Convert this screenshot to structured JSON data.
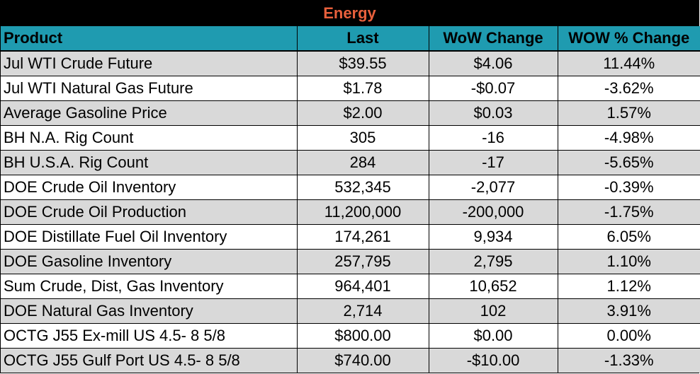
{
  "title": "Energy",
  "colors": {
    "title_text": "#e8603c",
    "title_bg": "#000000",
    "header_bg": "#1f9bb0",
    "row_shade": "#d9d9d9",
    "row_plain": "#ffffff"
  },
  "columns": [
    "Product",
    "Last",
    "WoW Change",
    "WOW % Change"
  ],
  "rows": [
    [
      "Jul WTI Crude Future",
      "$39.55",
      "$4.06",
      "11.44%"
    ],
    [
      "Jul WTI Natural Gas Future",
      "$1.78",
      "-$0.07",
      "-3.62%"
    ],
    [
      "Average Gasoline Price",
      "$2.00",
      "$0.03",
      "1.57%"
    ],
    [
      "BH N.A. Rig Count",
      "305",
      "-16",
      "-4.98%"
    ],
    [
      "BH U.S.A. Rig Count",
      "284",
      "-17",
      "-5.65%"
    ],
    [
      "DOE Crude Oil Inventory",
      "532,345",
      "-2,077",
      "-0.39%"
    ],
    [
      "DOE Crude Oil Production",
      "11,200,000",
      "-200,000",
      "-1.75%"
    ],
    [
      "DOE Distillate Fuel Oil Inventory",
      "174,261",
      "9,934",
      "6.05%"
    ],
    [
      "DOE Gasoline Inventory",
      "257,795",
      "2,795",
      "1.10%"
    ],
    [
      "Sum Crude, Dist, Gas Inventory",
      "964,401",
      "10,652",
      "1.12%"
    ],
    [
      "DOE Natural Gas Inventory",
      "2,714",
      "102",
      "3.91%"
    ],
    [
      "OCTG J55 Ex-mill US 4.5- 8 5/8",
      "$800.00",
      "$0.00",
      "0.00%"
    ],
    [
      "OCTG J55 Gulf Port US 4.5- 8 5/8",
      "$740.00",
      "-$10.00",
      "-1.33%"
    ]
  ]
}
